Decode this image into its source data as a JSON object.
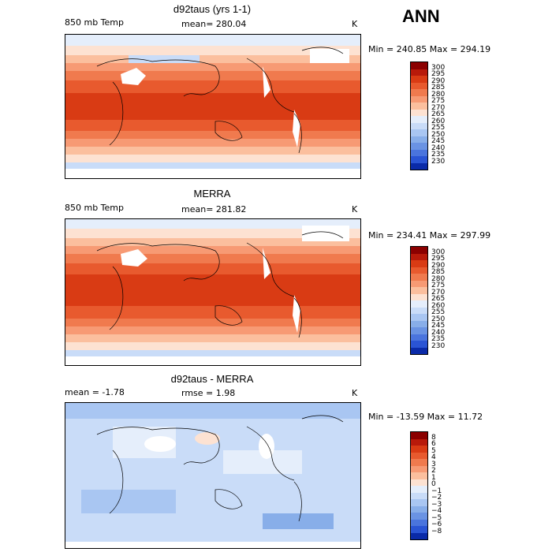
{
  "season": "ANN",
  "units": "K",
  "panels": [
    {
      "title": "d92taus (yrs 1-1)",
      "variable": "850 mb Temp",
      "stat": "mean= 280.04",
      "minmax": "Min = 240.85  Max = 294.19",
      "colorbar_labels": [
        "300",
        "295",
        "290",
        "285",
        "280",
        "275",
        "270",
        "265",
        "260",
        "255",
        "250",
        "245",
        "240",
        "235",
        "230"
      ],
      "colors": [
        "#8b0000",
        "#b81a0a",
        "#d93b14",
        "#e85a2e",
        "#f07a4e",
        "#f79a74",
        "#fbbf9e",
        "#fde2d2",
        "#e5eefb",
        "#c9dcf8",
        "#a9c6f2",
        "#88aee9",
        "#6a93e3",
        "#4a74dd",
        "#2a54d4",
        "#0a2aa8"
      ]
    },
    {
      "title": "MERRA",
      "variable": "850 mb Temp",
      "stat": "mean= 281.82",
      "minmax": "Min = 234.41  Max = 297.99",
      "colorbar_labels": [
        "300",
        "295",
        "290",
        "285",
        "280",
        "275",
        "270",
        "265",
        "260",
        "255",
        "250",
        "245",
        "240",
        "235",
        "230"
      ],
      "colors": [
        "#8b0000",
        "#b81a0a",
        "#d93b14",
        "#e85a2e",
        "#f07a4e",
        "#f79a74",
        "#fbbf9e",
        "#fde2d2",
        "#e5eefb",
        "#c9dcf8",
        "#a9c6f2",
        "#88aee9",
        "#6a93e3",
        "#4a74dd",
        "#2a54d4",
        "#0a2aa8"
      ]
    },
    {
      "title": "d92taus - MERRA",
      "stat_left": "mean =   -1.78",
      "stat": "rmse =    1.98",
      "minmax": "Min = -13.59  Max =   11.72",
      "colorbar_labels": [
        "8",
        "6",
        "5",
        "4",
        "3",
        "2",
        "1",
        "0",
        "−1",
        "−2",
        "−3",
        "−4",
        "−5",
        "−6",
        "−8"
      ],
      "colors": [
        "#8b0000",
        "#b81a0a",
        "#d93b14",
        "#e85a2e",
        "#f07a4e",
        "#f79a74",
        "#fbbf9e",
        "#fde2d2",
        "#e5eefb",
        "#c9dcf8",
        "#a9c6f2",
        "#88aee9",
        "#6a93e3",
        "#4a74dd",
        "#2a54d4",
        "#0a2aa8"
      ]
    }
  ]
}
